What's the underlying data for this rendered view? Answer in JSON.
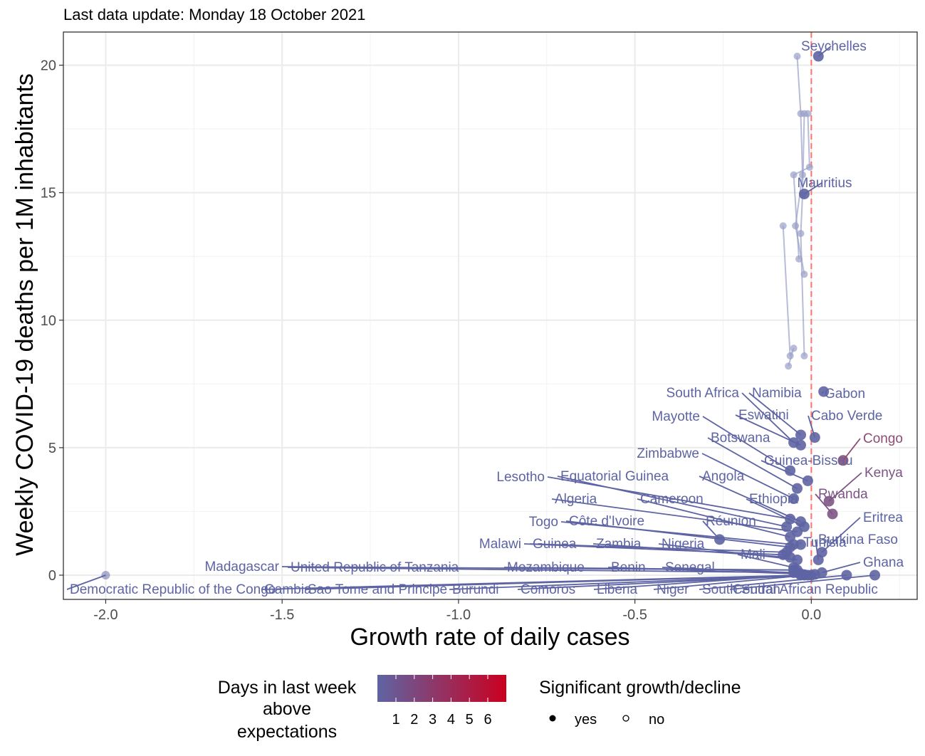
{
  "chart_data": {
    "type": "scatter",
    "subtitle": "Last data update: Monday 18 October 2021",
    "xlabel": "Growth rate of daily cases",
    "ylabel": "Weekly COVID-19 deaths per 1M inhabitants",
    "xlim": [
      -2.12,
      0.3
    ],
    "ylim": [
      -0.95,
      21.3
    ],
    "x_ticks": [
      -2.0,
      -1.5,
      -1.0,
      -0.5,
      0.0
    ],
    "x_tick_labels": [
      "-2.0",
      "-1.5",
      "-1.0",
      "-0.5",
      "0.0"
    ],
    "y_ticks": [
      0,
      5,
      10,
      15,
      20
    ],
    "y_tick_labels": [
      "0",
      "5",
      "10",
      "15",
      "20"
    ],
    "reference_line_x": 0,
    "reference_line_color": "#f8766d",
    "grid": true,
    "legend_placement": "bottom",
    "colors": {
      "low": "#5e64a3",
      "high": "#ca0020",
      "congo": "#8d4b74",
      "trail": "#9aa0c8"
    },
    "points": [
      {
        "name": "Seychelles",
        "x": 0.02,
        "y": 20.35,
        "days": 1,
        "significant": true
      },
      {
        "name": "Mauritius",
        "x": -0.02,
        "y": 14.95,
        "days": 1,
        "significant": true
      },
      {
        "name": "South Africa",
        "x": -0.05,
        "y": 5.2,
        "days": 1,
        "significant": true
      },
      {
        "name": "Namibia",
        "x": -0.03,
        "y": 5.5,
        "days": 1,
        "significant": true
      },
      {
        "name": "Gabon",
        "x": 0.035,
        "y": 7.2,
        "days": 1,
        "significant": true
      },
      {
        "name": "Mayotte",
        "x": -0.06,
        "y": 4.1,
        "days": 1,
        "significant": true
      },
      {
        "name": "Eswatini",
        "x": -0.03,
        "y": 5.1,
        "days": 1,
        "significant": true
      },
      {
        "name": "Cabo Verde",
        "x": 0.01,
        "y": 5.4,
        "days": 1,
        "significant": true
      },
      {
        "name": "Botswana",
        "x": -0.04,
        "y": 3.4,
        "days": 1,
        "significant": true
      },
      {
        "name": "Congo",
        "x": 0.09,
        "y": 4.5,
        "days": 3,
        "significant": true
      },
      {
        "name": "Zimbabwe",
        "x": -0.05,
        "y": 3.0,
        "days": 1,
        "significant": true
      },
      {
        "name": "Guinea-Bissau",
        "x": -0.01,
        "y": 3.7,
        "days": 1,
        "significant": true
      },
      {
        "name": "Kenya",
        "x": 0.05,
        "y": 2.9,
        "days": 2,
        "significant": true
      },
      {
        "name": "Lesotho",
        "x": -0.06,
        "y": 2.2,
        "days": 1,
        "significant": true
      },
      {
        "name": "Equatorial Guinea",
        "x": -0.07,
        "y": 1.9,
        "days": 1,
        "significant": true
      },
      {
        "name": "Angola",
        "x": -0.03,
        "y": 2.1,
        "days": 1,
        "significant": true
      },
      {
        "name": "Rwanda",
        "x": 0.06,
        "y": 2.4,
        "days": 2,
        "significant": true
      },
      {
        "name": "Algeria",
        "x": -0.04,
        "y": 1.7,
        "days": 1,
        "significant": true
      },
      {
        "name": "Cameroon",
        "x": -0.06,
        "y": 1.5,
        "days": 1,
        "significant": true
      },
      {
        "name": "Ethiopia",
        "x": -0.02,
        "y": 1.9,
        "days": 1,
        "significant": true
      },
      {
        "name": "Eritrea",
        "x": 0.03,
        "y": 0.9,
        "days": 1,
        "significant": true
      },
      {
        "name": "Togo",
        "x": -0.05,
        "y": 1.2,
        "days": 1,
        "significant": true
      },
      {
        "name": "Côte d'Ivoire",
        "x": -0.06,
        "y": 1.1,
        "days": 1,
        "significant": true
      },
      {
        "name": "Réunion",
        "x": -0.26,
        "y": 1.4,
        "days": 1,
        "significant": true
      },
      {
        "name": "Tunisia",
        "x": -0.03,
        "y": 1.2,
        "days": 1,
        "significant": true
      },
      {
        "name": "Burkina Faso",
        "x": 0.02,
        "y": 0.6,
        "days": 1,
        "significant": true
      },
      {
        "name": "Malawi",
        "x": -0.08,
        "y": 0.8,
        "days": 1,
        "significant": true
      },
      {
        "name": "Guinea",
        "x": -0.07,
        "y": 0.9,
        "days": 1,
        "significant": true
      },
      {
        "name": "Zambia",
        "x": -0.06,
        "y": 0.7,
        "days": 1,
        "significant": true
      },
      {
        "name": "Nigeria",
        "x": -0.04,
        "y": 0.6,
        "days": 1,
        "significant": true
      },
      {
        "name": "Mali",
        "x": -0.05,
        "y": 0.3,
        "days": 1,
        "significant": true
      },
      {
        "name": "Ghana",
        "x": 0.03,
        "y": 0.1,
        "days": 1,
        "significant": true
      },
      {
        "name": "Madagascar",
        "x": -0.05,
        "y": 0.2,
        "days": 1,
        "significant": true
      },
      {
        "name": "United Republic of Tanzania",
        "x": -0.04,
        "y": 0.1,
        "days": 1,
        "significant": true
      },
      {
        "name": "Mozambique",
        "x": -0.04,
        "y": 0.2,
        "days": 1,
        "significant": true
      },
      {
        "name": "Benin",
        "x": -0.03,
        "y": 0.05,
        "days": 1,
        "significant": true
      },
      {
        "name": "Senegal",
        "x": -0.05,
        "y": 0.1,
        "days": 1,
        "significant": true
      },
      {
        "name": "Democratic Republic of the Congo",
        "x": -2.0,
        "y": 0.0,
        "days": 1,
        "significant": false
      },
      {
        "name": "Gambia",
        "x": -0.03,
        "y": 0.0,
        "days": 1,
        "significant": true
      },
      {
        "name": "Sao Tome and Principe",
        "x": -0.02,
        "y": 0.0,
        "days": 1,
        "significant": true
      },
      {
        "name": "Burundi",
        "x": -0.01,
        "y": 0.0,
        "days": 1,
        "significant": true
      },
      {
        "name": "Comoros",
        "x": 0.0,
        "y": 0.0,
        "days": 1,
        "significant": true
      },
      {
        "name": "Liberia",
        "x": -0.02,
        "y": 0.02,
        "days": 1,
        "significant": true
      },
      {
        "name": "Niger",
        "x": 0.01,
        "y": 0.03,
        "days": 1,
        "significant": true
      },
      {
        "name": "South Sudan",
        "x": 0.1,
        "y": 0.0,
        "days": 1,
        "significant": true
      },
      {
        "name": "Central African Republic",
        "x": 0.18,
        "y": 0.0,
        "days": 1,
        "significant": true
      }
    ],
    "trails": [
      [
        [
          -0.04,
          20.35
        ],
        [
          -0.03,
          18.1
        ],
        [
          -0.025,
          15.7
        ],
        [
          -0.045,
          13.7
        ],
        [
          -0.02,
          11.8
        ]
      ],
      [
        [
          -0.02,
          18.1
        ],
        [
          -0.025,
          14.9
        ],
        [
          -0.03,
          13.4
        ],
        [
          -0.02,
          8.6
        ]
      ],
      [
        [
          -0.01,
          18.1
        ],
        [
          -0.005,
          16
        ],
        [
          -0.05,
          15.7
        ],
        [
          -0.035,
          12.4
        ]
      ],
      [
        [
          -0.08,
          13.7
        ],
        [
          -0.06,
          8.6
        ],
        [
          -0.05,
          8.9
        ],
        [
          -0.065,
          8.2
        ]
      ]
    ],
    "legend_color": {
      "title": "Days in last week above expectations",
      "title_lines": [
        "Days in last week",
        "above",
        "expectations"
      ],
      "ticks": [
        "1",
        "2",
        "3",
        "4",
        "5",
        "6"
      ]
    },
    "legend_shape": {
      "title": "Significant growth/decline",
      "items": [
        {
          "label": "yes",
          "filled": true
        },
        {
          "label": "no",
          "filled": false
        }
      ]
    }
  }
}
